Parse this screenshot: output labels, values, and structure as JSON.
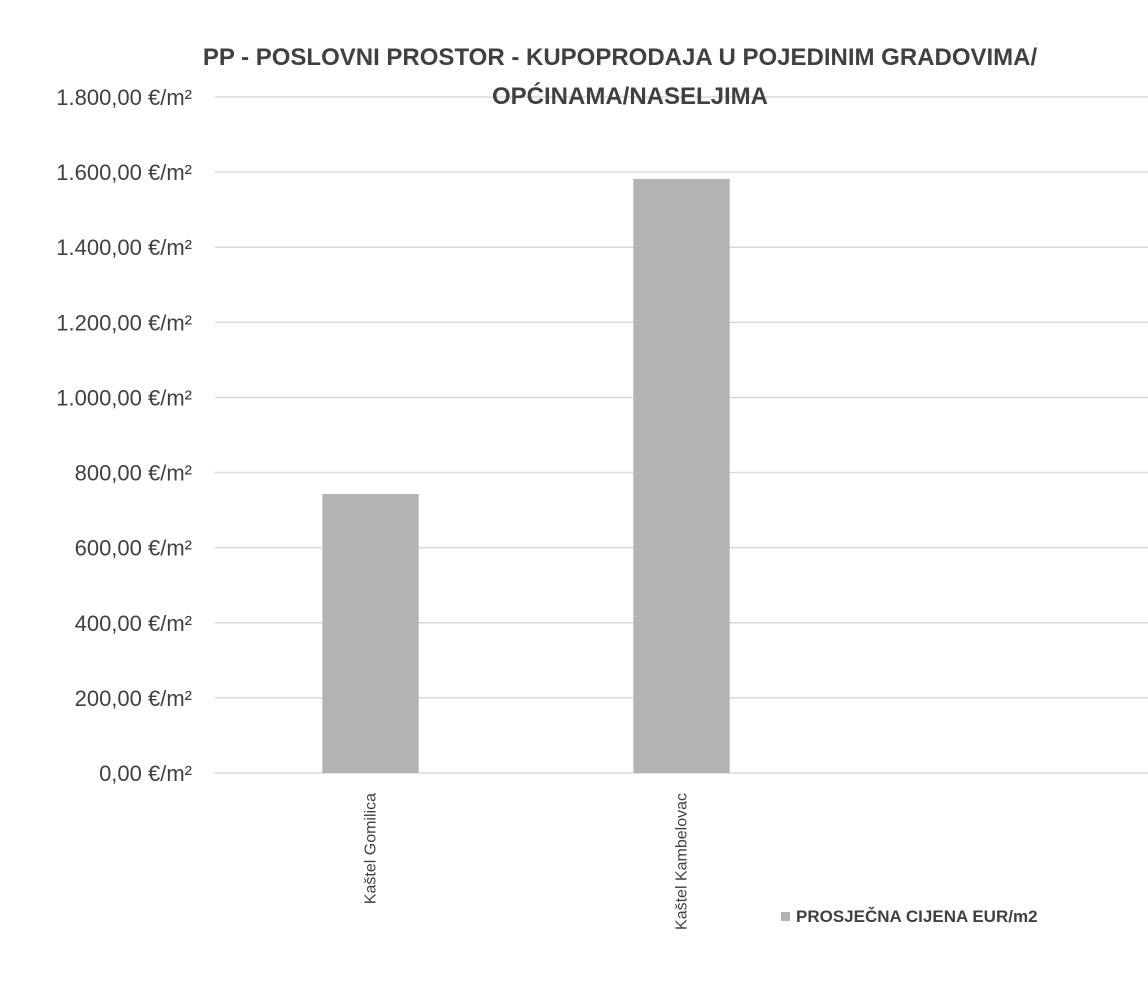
{
  "chart_data": {
    "type": "bar",
    "title_lines": [
      "PP - POSLOVNI PROSTOR - KUPOPRODAJA U POJEDINIM GRADOVIMA/",
      "OPĆINAMA/NASELJIMA"
    ],
    "categories": [
      "Kaštel Gomilica",
      "Kaštel Kambelovac"
    ],
    "series": [
      {
        "name": "PROSJEČNA CIJENA EUR/m2",
        "values": [
          743,
          1582
        ],
        "color": "#b3b3b3"
      }
    ],
    "ylim": [
      0,
      1800
    ],
    "yticks": [
      0,
      200,
      400,
      600,
      800,
      1000,
      1200,
      1400,
      1600,
      1800
    ],
    "ytick_labels": [
      "0,00 €/m²",
      "200,00 €/m²",
      "400,00 €/m²",
      "600,00 €/m²",
      "800,00 €/m²",
      "1.000,00 €/m²",
      "1.200,00 €/m²",
      "1.400,00 €/m²",
      "1.600,00 €/m²",
      "1.800,00 €/m²"
    ],
    "grid": true,
    "legend_position": "bottom-right"
  },
  "colors": {
    "bar": "#b3b3b3",
    "grid": "#d9d9d9",
    "text": "#404040"
  }
}
